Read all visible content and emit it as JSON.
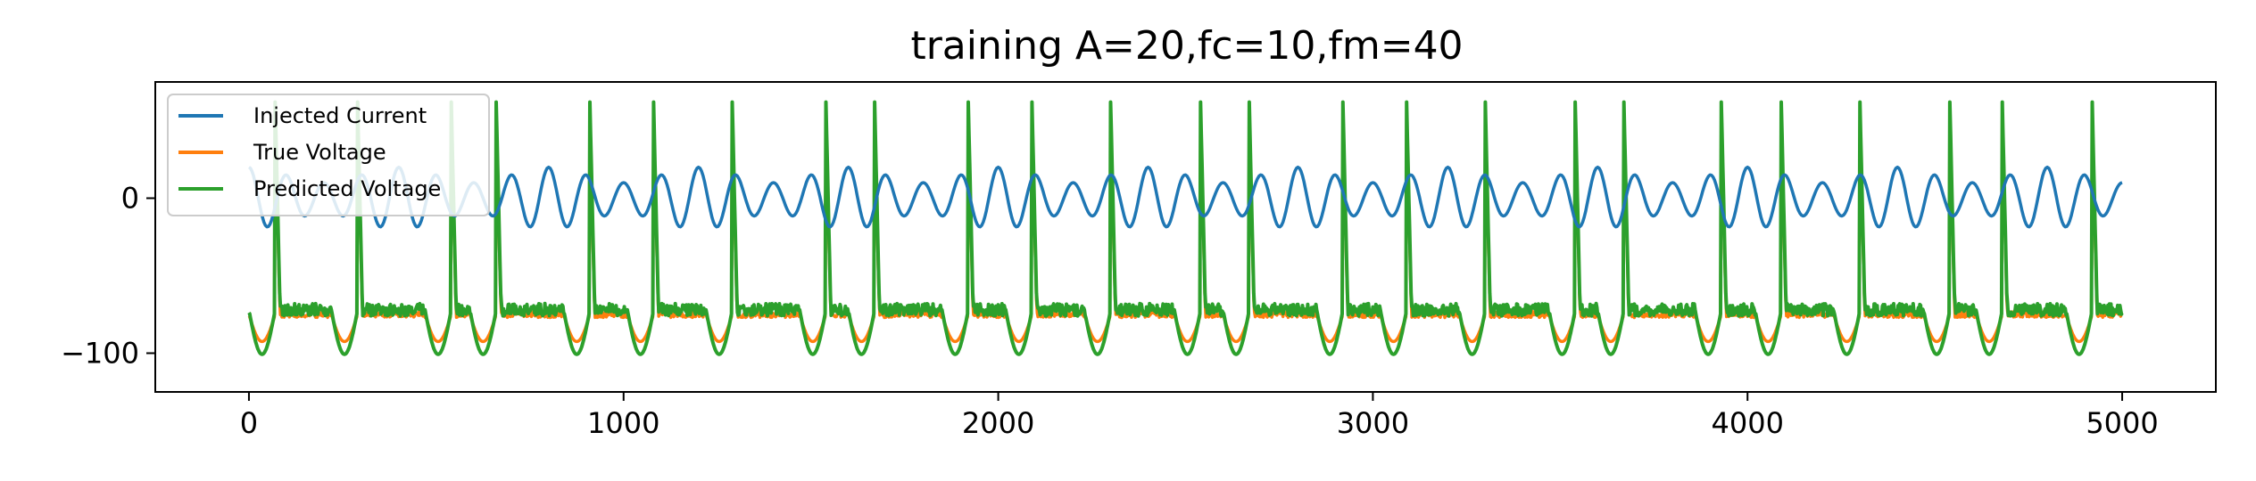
{
  "chart_data": {
    "type": "line",
    "title": "training A=20,fc=10,fm=40",
    "xlabel": "",
    "ylabel": "",
    "xlim": [
      -250,
      5250
    ],
    "ylim": [
      -125,
      75
    ],
    "x_ticks": [
      0,
      1000,
      2000,
      3000,
      4000,
      5000
    ],
    "x_tick_labels": [
      "0",
      "1000",
      "2000",
      "3000",
      "4000",
      "5000"
    ],
    "y_ticks": [
      0,
      -100
    ],
    "y_tick_labels": [
      "0",
      "−100"
    ],
    "grid": false,
    "legend_position": "upper-left",
    "series": [
      {
        "name": "Injected Current",
        "color": "#1f77b4",
        "model": "A*(1+0.5*cos(2*pi*x/fm_period))*sin(2*pi*x/carrier_period) (approx.)",
        "amplitude": 20,
        "carrier_period": 100,
        "modulation_period": 400,
        "x_range": [
          0,
          5000
        ]
      },
      {
        "name": "True Voltage",
        "color": "#ff7f0e",
        "baseline": -75,
        "spike_peak": 50,
        "trough": -100,
        "spike_times": [
          70,
          290,
          540,
          660,
          910,
          1080,
          1290,
          1540,
          1670,
          1920,
          2090,
          2300,
          2540,
          2670,
          2920,
          3090,
          3300,
          3540,
          3670,
          3930,
          4090,
          4300,
          4540,
          4680,
          4920
        ],
        "x_range": [
          0,
          5000
        ]
      },
      {
        "name": "Predicted Voltage",
        "color": "#2ca02c",
        "baseline": -72,
        "spike_peak": 62,
        "trough": -113,
        "spike_times": [
          70,
          290,
          540,
          660,
          910,
          1080,
          1290,
          1540,
          1670,
          1920,
          2090,
          2300,
          2540,
          2670,
          2920,
          3090,
          3300,
          3540,
          3670,
          3930,
          4090,
          4300,
          4540,
          4680,
          4920
        ],
        "x_range": [
          0,
          5000
        ]
      }
    ]
  }
}
